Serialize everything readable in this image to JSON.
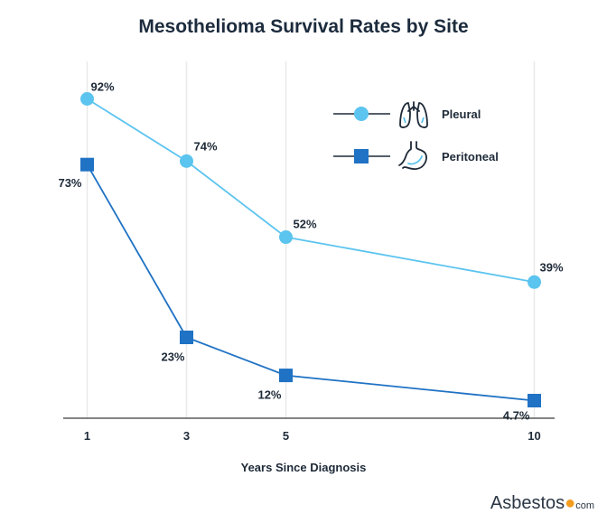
{
  "chart_data": {
    "type": "line",
    "title": "Mesothelioma Survival Rates by Site",
    "xlabel": "Years Since Diagnosis",
    "ylabel": "",
    "x": [
      1,
      3,
      5,
      10
    ],
    "x_tick_labels": [
      "1",
      "3",
      "5",
      "10"
    ],
    "ylim": [
      0,
      100
    ],
    "grid": "vertical",
    "legend_position": "top-right",
    "series": [
      {
        "name": "Pleural",
        "values": [
          92,
          74,
          52,
          39
        ],
        "labels": [
          "92%",
          "74%",
          "52%",
          "39%"
        ],
        "marker": "circle",
        "icon": "lungs-icon",
        "color": "#5bc4ef"
      },
      {
        "name": "Peritoneal",
        "values": [
          73,
          23,
          12,
          4.7
        ],
        "labels": [
          "73%",
          "23%",
          "12%",
          "4.7%"
        ],
        "marker": "square",
        "icon": "stomach-icon",
        "color": "#1f72c4"
      }
    ]
  },
  "brand": {
    "name": "Asbestos",
    "dot": "●",
    "suffix": "com"
  }
}
